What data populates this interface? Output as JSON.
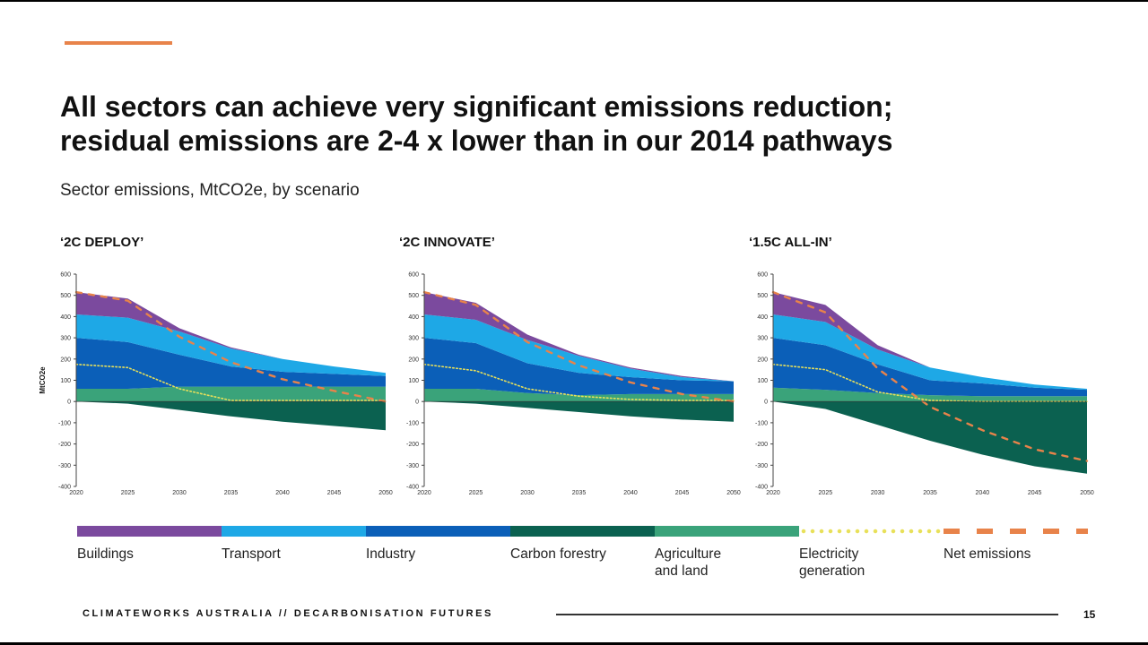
{
  "slide": {
    "title_line1": "All sectors can achieve very significant emissions reduction;",
    "title_line2": "residual emissions are 2-4 x lower than in our 2014 pathways",
    "subtitle": "Sector emissions, MtCO2e, by scenario",
    "footer": "CLIMATEWORKS AUSTRALIA // DECARBONISATION FUTURES",
    "page_number": "15",
    "accent_color": "#e8834a"
  },
  "legend": [
    {
      "label": "Buildings",
      "color": "#7b4a9e",
      "style": "solid"
    },
    {
      "label": "Transport",
      "color": "#1ea8e6",
      "style": "solid"
    },
    {
      "label": "Industry",
      "color": "#0b5fb8",
      "style": "solid"
    },
    {
      "label": "Carbon forestry",
      "color": "#0b6150",
      "style": "solid"
    },
    {
      "label": "Agriculture\nand land",
      "color": "#3aa37a",
      "style": "solid"
    },
    {
      "label": "Electricity\ngeneration",
      "color": "#e8e05a",
      "style": "dotted"
    },
    {
      "label": "Net emissions",
      "color": "#e8834a",
      "style": "dashed"
    }
  ],
  "chart_data": [
    {
      "type": "area",
      "stacked": true,
      "title": "‘2C DEPLOY’",
      "ylabel": "MtCO2e",
      "ylim": [
        -400,
        600
      ],
      "yticks": [
        "600",
        "500",
        "400",
        "300",
        "200",
        "100",
        "0",
        "-100",
        "-200",
        "-300",
        "-400"
      ],
      "x": [
        "2020",
        "2025",
        "2030",
        "2035",
        "2040",
        "2045",
        "2050"
      ],
      "series": [
        {
          "name": "Agriculture and land",
          "values": [
            60,
            60,
            70,
            70,
            70,
            70,
            70
          ]
        },
        {
          "name": "Industry",
          "values": [
            240,
            220,
            150,
            95,
            70,
            60,
            50
          ]
        },
        {
          "name": "Transport",
          "values": [
            110,
            115,
            110,
            85,
            60,
            35,
            15
          ]
        },
        {
          "name": "Buildings",
          "values": [
            105,
            90,
            15,
            5,
            0,
            0,
            0
          ]
        },
        {
          "name": "Carbon forestry",
          "values": [
            0,
            -10,
            -40,
            -70,
            -95,
            -115,
            -135
          ]
        }
      ],
      "lines": [
        {
          "name": "Electricity generation",
          "values": [
            175,
            160,
            60,
            5,
            5,
            5,
            5
          ]
        },
        {
          "name": "Net emissions",
          "values": [
            515,
            475,
            305,
            185,
            105,
            50,
            0
          ]
        }
      ]
    },
    {
      "type": "area",
      "stacked": true,
      "title": "‘2C INNOVATE’",
      "ylabel": "",
      "ylim": [
        -400,
        600
      ],
      "yticks": [
        "600",
        "500",
        "400",
        "300",
        "200",
        "100",
        "0",
        "-100",
        "-200",
        "-300",
        "-400"
      ],
      "x": [
        "2020",
        "2025",
        "2030",
        "2035",
        "2040",
        "2045",
        "2050"
      ],
      "series": [
        {
          "name": "Agriculture and land",
          "values": [
            60,
            60,
            40,
            30,
            35,
            35,
            35
          ]
        },
        {
          "name": "Industry",
          "values": [
            240,
            215,
            140,
            105,
            80,
            65,
            60
          ]
        },
        {
          "name": "Transport",
          "values": [
            110,
            110,
            110,
            80,
            40,
            15,
            0
          ]
        },
        {
          "name": "Buildings",
          "values": [
            105,
            80,
            25,
            5,
            5,
            5,
            0
          ]
        },
        {
          "name": "Carbon forestry",
          "values": [
            0,
            -10,
            -30,
            -50,
            -70,
            -85,
            -95
          ]
        }
      ],
      "lines": [
        {
          "name": "Electricity generation",
          "values": [
            175,
            145,
            60,
            25,
            10,
            5,
            5
          ]
        },
        {
          "name": "Net emissions",
          "values": [
            515,
            455,
            280,
            170,
            90,
            35,
            0
          ]
        }
      ]
    },
    {
      "type": "area",
      "stacked": true,
      "title": "‘1.5C ALL-IN’",
      "ylabel": "",
      "ylim": [
        -400,
        600
      ],
      "yticks": [
        "600",
        "500",
        "400",
        "300",
        "200",
        "100",
        "0",
        "-100",
        "-200",
        "-300",
        "-400"
      ],
      "x": [
        "2020",
        "2025",
        "2030",
        "2035",
        "2040",
        "2045",
        "2050"
      ],
      "series": [
        {
          "name": "Agriculture and land",
          "values": [
            65,
            55,
            40,
            30,
            25,
            25,
            25
          ]
        },
        {
          "name": "Industry",
          "values": [
            235,
            210,
            135,
            70,
            60,
            40,
            30
          ]
        },
        {
          "name": "Transport",
          "values": [
            110,
            110,
            70,
            60,
            30,
            15,
            5
          ]
        },
        {
          "name": "Buildings",
          "values": [
            105,
            80,
            20,
            0,
            0,
            0,
            0
          ]
        },
        {
          "name": "Carbon forestry",
          "values": [
            0,
            -35,
            -110,
            -185,
            -250,
            -305,
            -340
          ]
        }
      ],
      "lines": [
        {
          "name": "Electricity generation",
          "values": [
            175,
            150,
            45,
            5,
            0,
            0,
            0
          ]
        },
        {
          "name": "Net emissions",
          "values": [
            515,
            420,
            155,
            -25,
            -135,
            -225,
            -280
          ]
        }
      ]
    }
  ]
}
